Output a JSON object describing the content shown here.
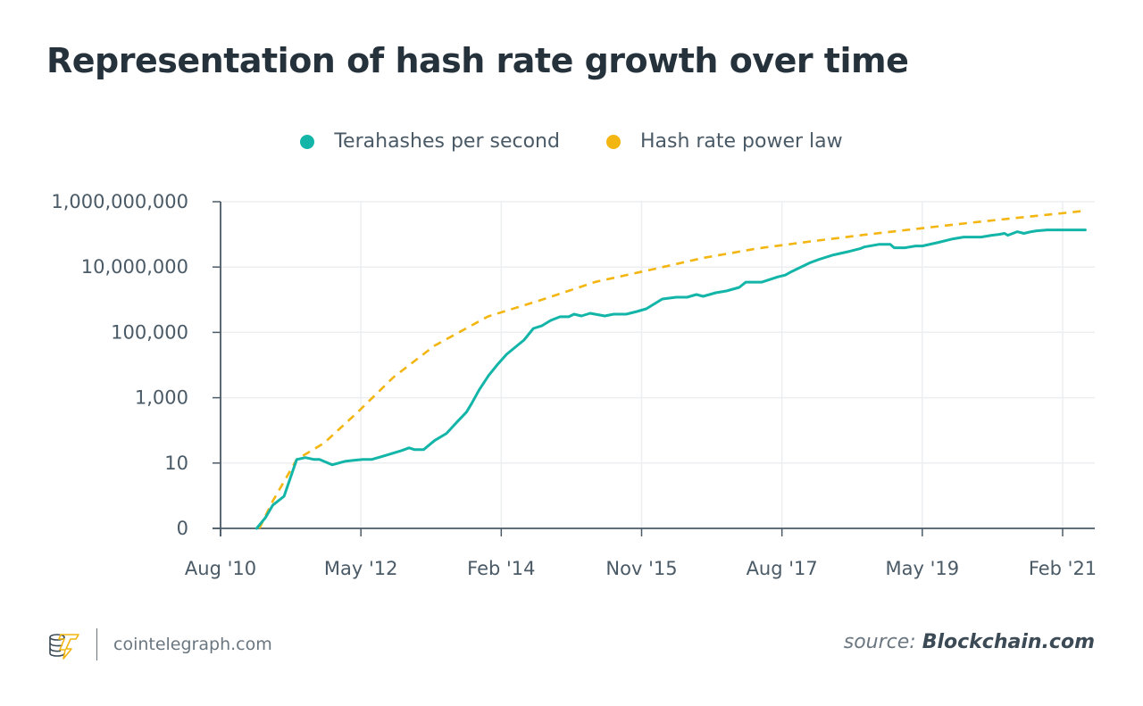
{
  "chart_data": {
    "type": "line",
    "title": "Representation of hash rate growth over time",
    "xlabel": "",
    "ylabel": "",
    "yscale": "log",
    "y_ticks": [
      {
        "value": 0.1,
        "label": "0"
      },
      {
        "value": 10,
        "label": "10"
      },
      {
        "value": 1000,
        "label": "1,000"
      },
      {
        "value": 100000,
        "label": "100,000"
      },
      {
        "value": 10000000,
        "label": "10,000,000"
      },
      {
        "value": 1000000000,
        "label": "1,000,000,000"
      }
    ],
    "ylim": [
      0.1,
      1000000000
    ],
    "x_unit": "months since Aug 2010",
    "x_ticks": [
      {
        "value": 0,
        "label": "Aug '10"
      },
      {
        "value": 21,
        "label": "May '12"
      },
      {
        "value": 42,
        "label": "Feb '14"
      },
      {
        "value": 63,
        "label": "Nov '15"
      },
      {
        "value": 84,
        "label": "Aug '17"
      },
      {
        "value": 105,
        "label": "May '19"
      },
      {
        "value": 126,
        "label": "Feb '21"
      }
    ],
    "xlim": [
      0,
      130
    ],
    "grid": true,
    "legend_position": "top-center",
    "series": [
      {
        "name": "Terahashes per second",
        "color": "#13b5a8",
        "style": "solid",
        "points": [
          [
            5.4,
            0.1
          ],
          [
            6.7,
            0.21
          ],
          [
            7.8,
            0.51
          ],
          [
            9.5,
            0.96
          ],
          [
            11.4,
            12.9
          ],
          [
            12.7,
            14.7
          ],
          [
            14.0,
            12.9
          ],
          [
            14.8,
            12.9
          ],
          [
            16.7,
            8.8
          ],
          [
            18.6,
            11.3
          ],
          [
            19.9,
            12.1
          ],
          [
            21.3,
            12.9
          ],
          [
            22.6,
            12.9
          ],
          [
            24.5,
            16.6
          ],
          [
            27.1,
            24.1
          ],
          [
            28.2,
            29.1
          ],
          [
            29.0,
            25.8
          ],
          [
            30.4,
            25.8
          ],
          [
            32.0,
            48.5
          ],
          [
            33.8,
            80.6
          ],
          [
            35.4,
            182
          ],
          [
            36.8,
            363
          ],
          [
            37.6,
            682
          ],
          [
            38.7,
            1740
          ],
          [
            40.1,
            4770
          ],
          [
            41.4,
            10100
          ],
          [
            42.8,
            21300
          ],
          [
            44.1,
            35200
          ],
          [
            45.4,
            58300
          ],
          [
            46.8,
            132000
          ],
          [
            48.1,
            160000
          ],
          [
            49.4,
            233000
          ],
          [
            50.8,
            300000
          ],
          [
            52.1,
            300000
          ],
          [
            52.9,
            362000
          ],
          [
            54.0,
            319000
          ],
          [
            55.3,
            385000
          ],
          [
            57.5,
            319000
          ],
          [
            58.8,
            362000
          ],
          [
            60.7,
            362000
          ],
          [
            62.3,
            436000
          ],
          [
            63.7,
            525000
          ],
          [
            66.1,
            1050000
          ],
          [
            68.2,
            1190000
          ],
          [
            69.8,
            1190000
          ],
          [
            71.2,
            1440000
          ],
          [
            72.2,
            1270000
          ],
          [
            74.1,
            1630000
          ],
          [
            75.7,
            1850000
          ],
          [
            77.6,
            2380000
          ],
          [
            78.6,
            3450000
          ],
          [
            81.0,
            3450000
          ],
          [
            83.4,
            5020000
          ],
          [
            84.5,
            5690000
          ],
          [
            85.5,
            7330000
          ],
          [
            88.2,
            13500000
          ],
          [
            89.6,
            17300000
          ],
          [
            91.7,
            23600000
          ],
          [
            94.1,
            30300000
          ],
          [
            95.7,
            36500000
          ],
          [
            96.3,
            41300000
          ],
          [
            98.6,
            49800000
          ],
          [
            100.2,
            49800000
          ],
          [
            100.8,
            38900000
          ],
          [
            102.4,
            38900000
          ],
          [
            104.0,
            44200000
          ],
          [
            105.0,
            44200000
          ],
          [
            107.4,
            56900000
          ],
          [
            109.6,
            73200000
          ],
          [
            111.2,
            82900000
          ],
          [
            113.8,
            82900000
          ],
          [
            115.4,
            94000000
          ],
          [
            116.5,
            100000000
          ],
          [
            117.3,
            107000000
          ],
          [
            117.8,
            94000000
          ],
          [
            119.2,
            121000000
          ],
          [
            120.2,
            107000000
          ],
          [
            121.3,
            121000000
          ],
          [
            122.1,
            129000000
          ],
          [
            123.7,
            137000000
          ],
          [
            125.6,
            137000000
          ],
          [
            127.5,
            137000000
          ],
          [
            129.4,
            137000000
          ]
        ]
      },
      {
        "name": "Hash rate power law",
        "color": "#f3b50f",
        "style": "dashed",
        "points": [
          [
            5.8,
            0.1
          ],
          [
            7.8,
            0.68
          ],
          [
            11.4,
            12.9
          ],
          [
            15.5,
            41.3
          ],
          [
            20.5,
            358
          ],
          [
            25.9,
            4280
          ],
          [
            32.0,
            38800
          ],
          [
            40.0,
            307000
          ],
          [
            48.1,
            1000000
          ],
          [
            56.1,
            3530000
          ],
          [
            64.2,
            8100000
          ],
          [
            72.2,
            19000000
          ],
          [
            80.3,
            37000000
          ],
          [
            88.3,
            61000000
          ],
          [
            96.3,
            97000000
          ],
          [
            104.4,
            150000000
          ],
          [
            112.4,
            230000000
          ],
          [
            120.4,
            340000000
          ],
          [
            125.8,
            440000000
          ],
          [
            129.4,
            530000000
          ]
        ]
      }
    ]
  },
  "legend": {
    "items": [
      {
        "label": "Terahashes per second",
        "color": "#13b5a8"
      },
      {
        "label": "Hash rate power law",
        "color": "#f3b50f"
      }
    ]
  },
  "footer": {
    "site": "cointelegraph.com",
    "source_label": "source:",
    "source_name": "Blockchain.com",
    "logo_icon": "cointelegraph-logo-icon"
  }
}
